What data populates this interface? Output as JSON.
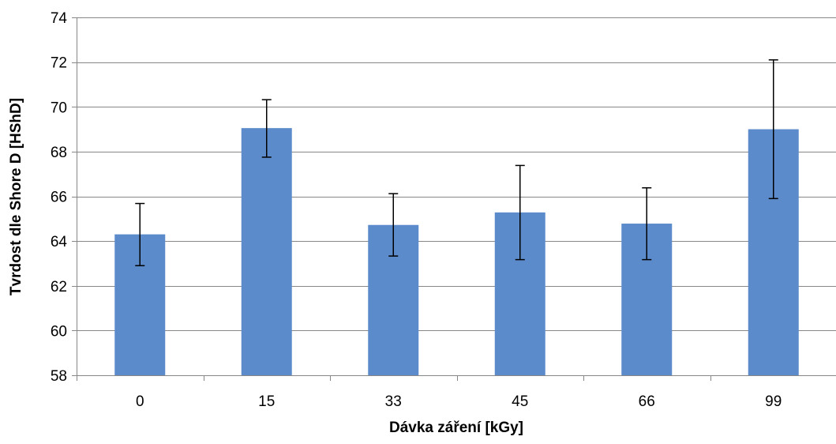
{
  "chart_data": {
    "type": "bar",
    "categories": [
      "0",
      "15",
      "33",
      "45",
      "66",
      "99"
    ],
    "values": [
      64.3,
      69.05,
      64.72,
      65.28,
      64.78,
      69.0
    ],
    "error_upper": [
      65.68,
      70.32,
      66.12,
      67.38,
      66.38,
      72.1
    ],
    "error_lower": [
      62.9,
      67.75,
      63.33,
      63.17,
      63.17,
      65.9
    ],
    "title": "",
    "xlabel": "Dávka záření [kGy]",
    "ylabel": "Tvrdost dle Shore D [HShD]",
    "ylim": [
      58,
      74
    ],
    "yticks": [
      "58",
      "60",
      "62",
      "64",
      "66",
      "68",
      "70",
      "72",
      "74"
    ],
    "grid": true,
    "legend": "none",
    "colors": {
      "bar": "#5B8BCB",
      "grid": "#878787",
      "axis": "#878787",
      "errorbar": "#000000"
    }
  }
}
